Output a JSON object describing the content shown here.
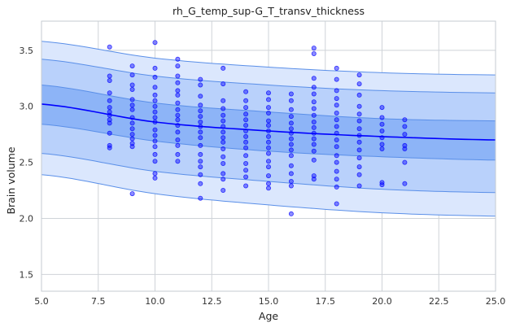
{
  "chart_data": {
    "type": "scatter",
    "title": "rh_G_temp_sup-G_T_transv_thickness",
    "xlabel": "Age",
    "ylabel": "Brain volume",
    "xlim": [
      5.0,
      25.0
    ],
    "ylim": [
      1.35,
      3.76
    ],
    "grid": true,
    "xticks": [
      "5.0",
      "7.5",
      "10.0",
      "12.5",
      "15.0",
      "17.5",
      "20.0",
      "22.5",
      "25.0"
    ],
    "yticks": [
      "1.5",
      "2.0",
      "2.5",
      "3.0",
      "3.5"
    ],
    "colors": {
      "mean_line": "#0000ff",
      "points": "#0000ff",
      "band_outer": "#dbe7fd",
      "band_middle": "#b9d1fb",
      "band_inner": "#8db4f7",
      "band_edge": "#5a8fe8"
    },
    "mean_curve": {
      "x": [
        5,
        10,
        15,
        20,
        25
      ],
      "y": [
        3.02,
        2.86,
        2.78,
        2.73,
        2.7
      ]
    },
    "bands": [
      {
        "upper": [
          3.58,
          3.43,
          3.35,
          3.3,
          3.28
        ],
        "lower": [
          2.39,
          2.22,
          2.12,
          2.05,
          2.02
        ]
      },
      {
        "upper": [
          3.42,
          3.27,
          3.19,
          3.14,
          3.12
        ],
        "lower": [
          2.58,
          2.42,
          2.33,
          2.26,
          2.23
        ]
      },
      {
        "upper": [
          3.19,
          3.03,
          2.95,
          2.89,
          2.87
        ],
        "lower": [
          2.84,
          2.69,
          2.6,
          2.55,
          2.52
        ]
      }
    ],
    "points": [
      [
        8,
        3.53
      ],
      [
        8,
        3.27
      ],
      [
        8,
        3.23
      ],
      [
        8,
        3.12
      ],
      [
        8,
        3.05
      ],
      [
        8,
        2.99
      ],
      [
        8,
        2.95
      ],
      [
        8,
        2.92
      ],
      [
        8,
        2.88
      ],
      [
        8,
        2.85
      ],
      [
        8,
        2.76
      ],
      [
        8,
        2.65
      ],
      [
        8,
        2.63
      ],
      [
        9,
        3.36
      ],
      [
        9,
        3.28
      ],
      [
        9,
        3.19
      ],
      [
        9,
        3.15
      ],
      [
        9,
        3.06
      ],
      [
        9,
        3.01
      ],
      [
        9,
        2.97
      ],
      [
        9,
        2.9
      ],
      [
        9,
        2.85
      ],
      [
        9,
        2.8
      ],
      [
        9,
        2.75
      ],
      [
        9,
        2.71
      ],
      [
        9,
        2.67
      ],
      [
        9,
        2.64
      ],
      [
        9,
        2.22
      ],
      [
        10,
        3.57
      ],
      [
        10,
        3.34
      ],
      [
        10,
        3.26
      ],
      [
        10,
        3.17
      ],
      [
        10,
        3.1
      ],
      [
        10,
        3.05
      ],
      [
        10,
        3.0
      ],
      [
        10,
        2.95
      ],
      [
        10,
        2.9
      ],
      [
        10,
        2.86
      ],
      [
        10,
        2.79
      ],
      [
        10,
        2.74
      ],
      [
        10,
        2.69
      ],
      [
        10,
        2.64
      ],
      [
        10,
        2.57
      ],
      [
        10,
        2.51
      ],
      [
        10,
        2.4
      ],
      [
        10,
        2.36
      ],
      [
        11,
        3.42
      ],
      [
        11,
        3.36
      ],
      [
        11,
        3.27
      ],
      [
        11,
        3.21
      ],
      [
        11,
        3.14
      ],
      [
        11,
        3.1
      ],
      [
        11,
        3.03
      ],
      [
        11,
        2.97
      ],
      [
        11,
        2.92
      ],
      [
        11,
        2.88
      ],
      [
        11,
        2.83
      ],
      [
        11,
        2.77
      ],
      [
        11,
        2.7
      ],
      [
        11,
        2.65
      ],
      [
        11,
        2.57
      ],
      [
        11,
        2.51
      ],
      [
        12,
        3.24
      ],
      [
        12,
        3.19
      ],
      [
        12,
        3.09
      ],
      [
        12,
        3.01
      ],
      [
        12,
        2.96
      ],
      [
        12,
        2.91
      ],
      [
        12,
        2.86
      ],
      [
        12,
        2.82
      ],
      [
        12,
        2.77
      ],
      [
        12,
        2.72
      ],
      [
        12,
        2.65
      ],
      [
        12,
        2.57
      ],
      [
        12,
        2.51
      ],
      [
        12,
        2.46
      ],
      [
        12,
        2.39
      ],
      [
        12,
        2.31
      ],
      [
        12,
        2.18
      ],
      [
        13,
        3.34
      ],
      [
        13,
        3.2
      ],
      [
        13,
        3.05
      ],
      [
        13,
        2.98
      ],
      [
        13,
        2.92
      ],
      [
        13,
        2.87
      ],
      [
        13,
        2.82
      ],
      [
        13,
        2.77
      ],
      [
        13,
        2.72
      ],
      [
        13,
        2.68
      ],
      [
        13,
        2.62
      ],
      [
        13,
        2.55
      ],
      [
        13,
        2.49
      ],
      [
        13,
        2.4
      ],
      [
        13,
        2.35
      ],
      [
        13,
        2.25
      ],
      [
        14,
        3.13
      ],
      [
        14,
        3.05
      ],
      [
        14,
        2.99
      ],
      [
        14,
        2.93
      ],
      [
        14,
        2.88
      ],
      [
        14,
        2.83
      ],
      [
        14,
        2.78
      ],
      [
        14,
        2.73
      ],
      [
        14,
        2.68
      ],
      [
        14,
        2.63
      ],
      [
        14,
        2.56
      ],
      [
        14,
        2.49
      ],
      [
        14,
        2.43
      ],
      [
        14,
        2.37
      ],
      [
        14,
        2.29
      ],
      [
        15,
        3.12
      ],
      [
        15,
        3.06
      ],
      [
        15,
        2.99
      ],
      [
        15,
        2.94
      ],
      [
        15,
        2.87
      ],
      [
        15,
        2.83
      ],
      [
        15,
        2.78
      ],
      [
        15,
        2.73
      ],
      [
        15,
        2.68
      ],
      [
        15,
        2.63
      ],
      [
        15,
        2.58
      ],
      [
        15,
        2.51
      ],
      [
        15,
        2.46
      ],
      [
        15,
        2.38
      ],
      [
        15,
        2.31
      ],
      [
        15,
        2.27
      ],
      [
        16,
        3.11
      ],
      [
        16,
        3.05
      ],
      [
        16,
        2.97
      ],
      [
        16,
        2.91
      ],
      [
        16,
        2.85
      ],
      [
        16,
        2.8
      ],
      [
        16,
        2.76
      ],
      [
        16,
        2.71
      ],
      [
        16,
        2.66
      ],
      [
        16,
        2.61
      ],
      [
        16,
        2.56
      ],
      [
        16,
        2.47
      ],
      [
        16,
        2.4
      ],
      [
        16,
        2.33
      ],
      [
        16,
        2.29
      ],
      [
        16,
        2.04
      ],
      [
        17,
        3.52
      ],
      [
        17,
        3.47
      ],
      [
        17,
        3.25
      ],
      [
        17,
        3.17
      ],
      [
        17,
        3.11
      ],
      [
        17,
        3.04
      ],
      [
        17,
        2.98
      ],
      [
        17,
        2.92
      ],
      [
        17,
        2.86
      ],
      [
        17,
        2.81
      ],
      [
        17,
        2.76
      ],
      [
        17,
        2.71
      ],
      [
        17,
        2.66
      ],
      [
        17,
        2.6
      ],
      [
        17,
        2.52
      ],
      [
        17,
        2.38
      ],
      [
        17,
        2.35
      ],
      [
        18,
        3.34
      ],
      [
        18,
        3.24
      ],
      [
        18,
        3.14
      ],
      [
        18,
        3.07
      ],
      [
        18,
        3.01
      ],
      [
        18,
        2.94
      ],
      [
        18,
        2.88
      ],
      [
        18,
        2.82
      ],
      [
        18,
        2.76
      ],
      [
        18,
        2.7
      ],
      [
        18,
        2.64
      ],
      [
        18,
        2.56
      ],
      [
        18,
        2.5
      ],
      [
        18,
        2.42
      ],
      [
        18,
        2.35
      ],
      [
        18,
        2.28
      ],
      [
        18,
        2.13
      ],
      [
        19,
        3.28
      ],
      [
        19,
        3.2
      ],
      [
        19,
        3.1
      ],
      [
        19,
        3.0
      ],
      [
        19,
        2.93
      ],
      [
        19,
        2.87
      ],
      [
        19,
        2.8
      ],
      [
        19,
        2.74
      ],
      [
        19,
        2.68
      ],
      [
        19,
        2.61
      ],
      [
        19,
        2.54
      ],
      [
        19,
        2.46
      ],
      [
        19,
        2.39
      ],
      [
        19,
        2.29
      ],
      [
        20,
        2.99
      ],
      [
        20,
        2.9
      ],
      [
        20,
        2.84
      ],
      [
        20,
        2.78
      ],
      [
        20,
        2.72
      ],
      [
        20,
        2.66
      ],
      [
        20,
        2.62
      ],
      [
        20,
        2.32
      ],
      [
        20,
        2.3
      ],
      [
        21,
        2.88
      ],
      [
        21,
        2.82
      ],
      [
        21,
        2.75
      ],
      [
        21,
        2.65
      ],
      [
        21,
        2.62
      ],
      [
        21,
        2.5
      ],
      [
        21,
        2.31
      ]
    ]
  }
}
